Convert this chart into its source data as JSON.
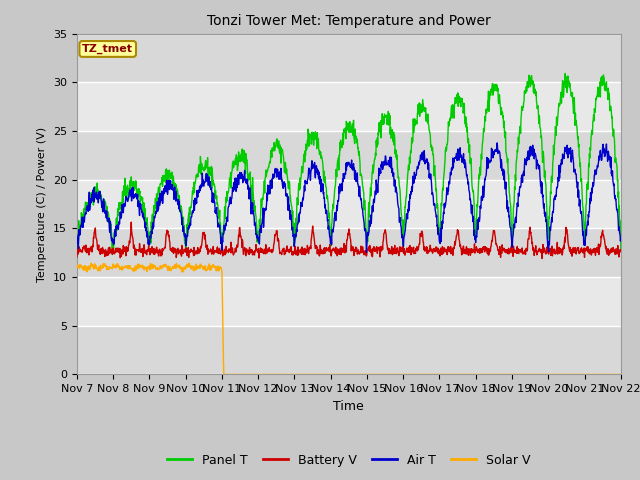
{
  "title": "Tonzi Tower Met: Temperature and Power",
  "xlabel": "Time",
  "ylabel": "Temperature (C) / Power (V)",
  "annotation": "TZ_tmet",
  "ylim": [
    0,
    35
  ],
  "yticks": [
    0,
    5,
    10,
    15,
    20,
    25,
    30,
    35
  ],
  "xtick_labels": [
    "Nov 7",
    "Nov 8",
    "Nov 9",
    "Nov 10",
    "Nov 11",
    "Nov 12",
    "Nov 13",
    "Nov 14",
    "Nov 15",
    "Nov 16",
    "Nov 17",
    "Nov 18",
    "Nov 19",
    "Nov 20",
    "Nov 21",
    "Nov 22"
  ],
  "legend_labels": [
    "Panel T",
    "Battery V",
    "Air T",
    "Solar V"
  ],
  "line_colors": [
    "#00cc00",
    "#cc0000",
    "#0000cc",
    "#ffaa00"
  ],
  "fig_bg": "#c8c8c8",
  "plot_bg": "#e8e8e8",
  "band_color": "#d8d8d8",
  "grid_color": "#ffffff",
  "n_days": 15,
  "pts_per_day": 96
}
